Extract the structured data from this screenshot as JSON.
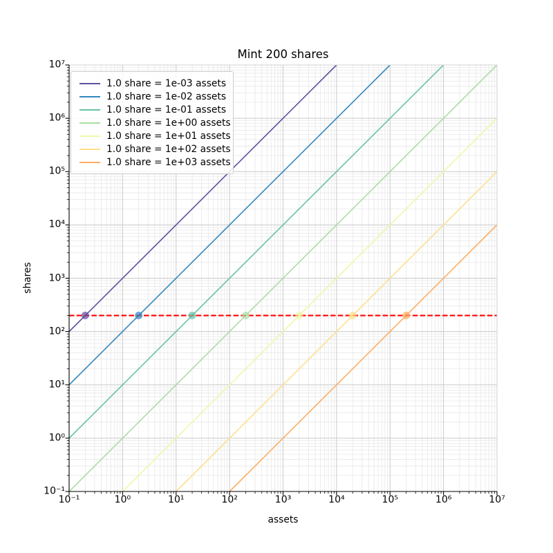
{
  "chart_data": {
    "type": "line",
    "title": "Mint 200 shares",
    "xlabel": "assets",
    "ylabel": "shares",
    "xscale": "log",
    "yscale": "log",
    "xlim_exp": [
      -1,
      7
    ],
    "ylim_exp": [
      -1,
      7
    ],
    "x_tick_labels": [
      "10⁻¹",
      "10⁰",
      "10¹",
      "10²",
      "10³",
      "10⁴",
      "10⁵",
      "10⁶",
      "10⁷"
    ],
    "y_tick_labels": [
      "10⁻¹",
      "10⁰",
      "10¹",
      "10²",
      "10³",
      "10⁴",
      "10⁵",
      "10⁶",
      "10⁷"
    ],
    "grid": "both",
    "legend_position": "upper-left",
    "series": [
      {
        "label": "1.0 share = 1e-03 assets",
        "assets_per_share": 0.001,
        "color": "#5e4fa2",
        "point": {
          "assets": 0.2,
          "shares": 200
        }
      },
      {
        "label": "1.0 share = 1e-02 assets",
        "assets_per_share": 0.01,
        "color": "#3288bd",
        "point": {
          "assets": 2,
          "shares": 200
        }
      },
      {
        "label": "1.0 share = 1e-01 assets",
        "assets_per_share": 0.1,
        "color": "#66c2a5",
        "point": {
          "assets": 20,
          "shares": 200
        }
      },
      {
        "label": "1.0 share = 1e+00 assets",
        "assets_per_share": 1,
        "color": "#abdda4",
        "point": {
          "assets": 200,
          "shares": 200
        }
      },
      {
        "label": "1.0 share = 1e+01 assets",
        "assets_per_share": 10,
        "color": "#eef8a8",
        "point": {
          "assets": 2000,
          "shares": 200
        }
      },
      {
        "label": "1.0 share = 1e+02 assets",
        "assets_per_share": 100,
        "color": "#fee08b",
        "point": {
          "assets": 20000,
          "shares": 200
        }
      },
      {
        "label": "1.0 share = 1e+03 assets",
        "assets_per_share": 1000,
        "color": "#fdae61",
        "point": {
          "assets": 200000,
          "shares": 200
        }
      }
    ],
    "reference_line": {
      "shares": 200,
      "color": "#ff0000",
      "style": "dashed"
    }
  }
}
